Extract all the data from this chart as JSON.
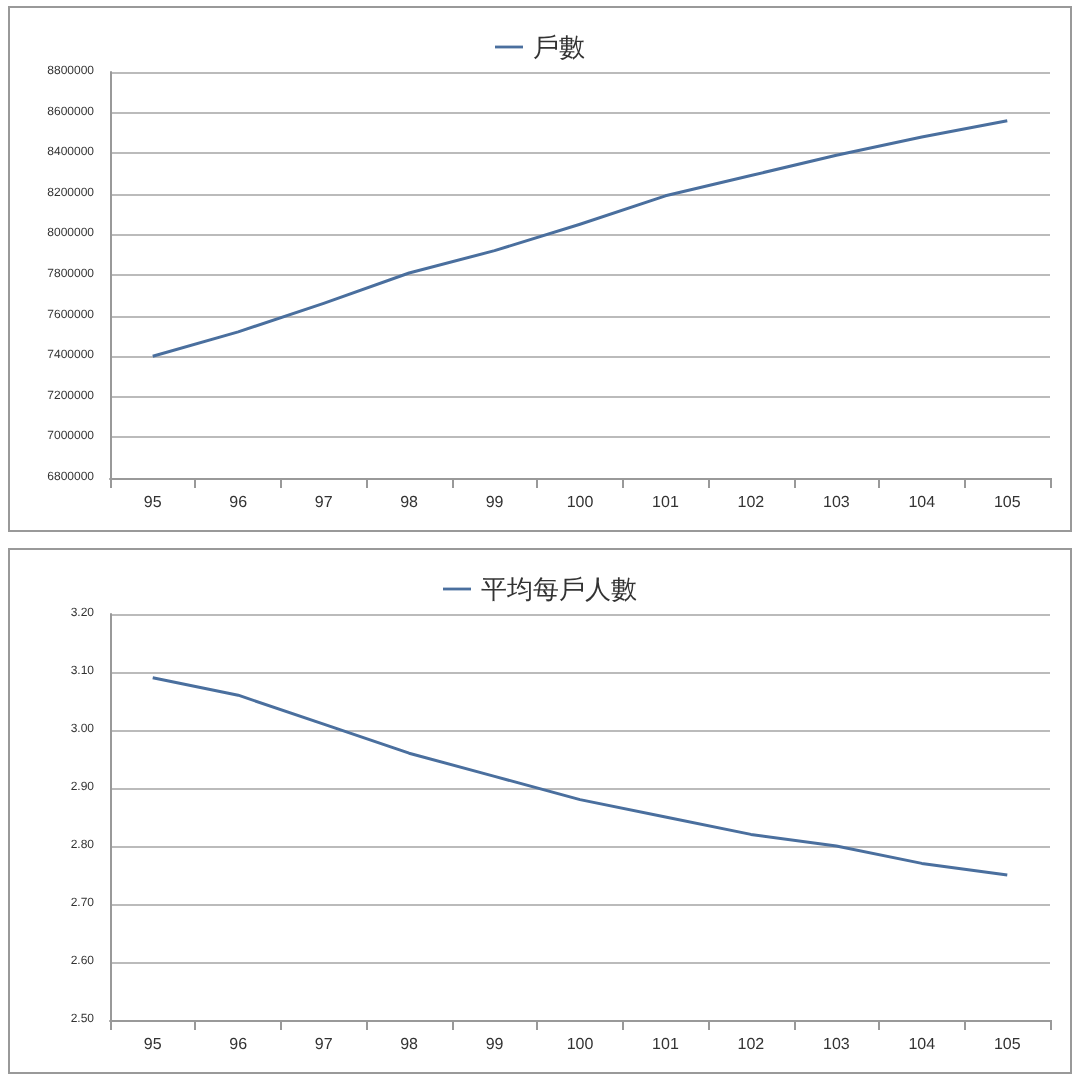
{
  "chart_data": [
    {
      "type": "line",
      "categories": [
        "95",
        "96",
        "97",
        "98",
        "99",
        "100",
        "101",
        "102",
        "103",
        "104",
        "105"
      ],
      "series": [
        {
          "name": "戶數",
          "color": "#4a6f9e",
          "values": [
            7400000,
            7520000,
            7660000,
            7810000,
            7920000,
            8050000,
            8190000,
            8290000,
            8390000,
            8480000,
            8560000
          ]
        }
      ],
      "ylim": [
        6800000,
        8800000
      ],
      "yticks": [
        6800000,
        7000000,
        7200000,
        7400000,
        7600000,
        7800000,
        8000000,
        8200000,
        8400000,
        8600000,
        8800000
      ],
      "grid": "y",
      "legend": "top",
      "marker": "none"
    },
    {
      "type": "line",
      "categories": [
        "95",
        "96",
        "97",
        "98",
        "99",
        "100",
        "101",
        "102",
        "103",
        "104",
        "105"
      ],
      "series": [
        {
          "name": "平均每戶人數",
          "color": "#4a6f9e",
          "values": [
            3.09,
            3.06,
            3.01,
            2.96,
            2.92,
            2.88,
            2.85,
            2.82,
            2.8,
            2.77,
            2.75
          ]
        }
      ],
      "ylim": [
        2.5,
        3.2
      ],
      "yticks": [
        {
          "value": 2.5,
          "label": "2.50"
        },
        {
          "value": 2.6,
          "label": "2.60"
        },
        {
          "value": 2.7,
          "label": "2.70"
        },
        {
          "value": 2.8,
          "label": "2.80"
        },
        {
          "value": 2.9,
          "label": "2.90"
        },
        {
          "value": 3.0,
          "label": "3.00"
        },
        {
          "value": 3.1,
          "label": "3.10"
        },
        {
          "value": 3.2,
          "label": "3.20"
        }
      ],
      "grid": "y",
      "legend": "top",
      "marker": "none"
    }
  ]
}
